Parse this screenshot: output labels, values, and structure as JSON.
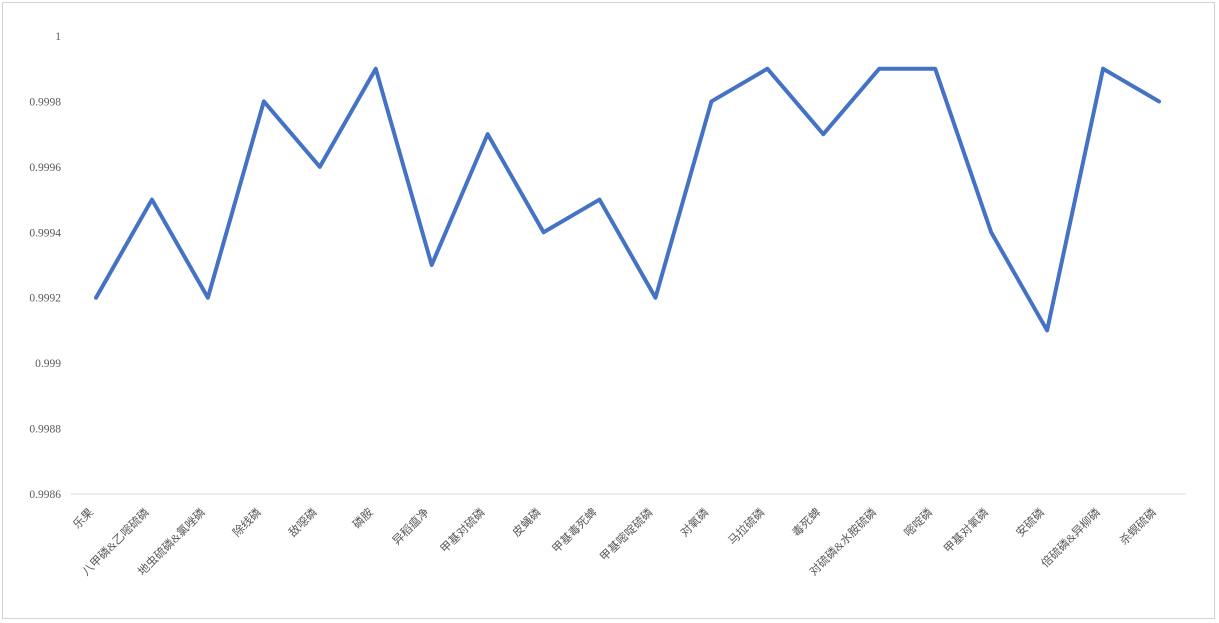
{
  "chart_data": {
    "type": "line",
    "title": "",
    "xlabel": "",
    "ylabel": "",
    "categories": [
      "乐果",
      "八甲磷&乙嘧硫磷",
      "地虫硫磷&氯唑磷",
      "除线磷",
      "敌噁磷",
      "磷胺",
      "异稻瘟净",
      "甲基对硫磷",
      "皮蝇磷",
      "甲基毒死蜱",
      "甲基嘧啶硫磷",
      "对氧磷",
      "马拉硫磷",
      "毒死蜱",
      "对硫磷&水胺硫磷",
      "嘧啶磷",
      "甲基对氧磷",
      "安硫磷",
      "倍硫磷&异柳磷",
      "杀螟硫磷"
    ],
    "values": [
      0.9992,
      0.9995,
      0.9992,
      0.9998,
      0.9996,
      0.9999,
      0.9993,
      0.9997,
      0.9994,
      0.9995,
      0.9992,
      0.9998,
      0.9999,
      0.9997,
      0.9999,
      0.9999,
      0.9994,
      0.9991,
      0.9999,
      0.9998
    ],
    "ylim": [
      0.9986,
      1
    ],
    "y_tick_values": [
      1,
      0.9998,
      0.9996,
      0.9994,
      0.9992,
      0.999,
      0.9988,
      0.9986
    ],
    "y_tick_labels": [
      "1",
      "0.9998",
      "0.9996",
      "0.9994",
      "0.9992",
      "0.999",
      "0.9988",
      "0.9986"
    ],
    "grid": false,
    "legend": "none",
    "x_label_rotation_deg": 45,
    "colors": {
      "line": "#4472C4",
      "axis_line": "#D9D9D9",
      "label_text": "#595959",
      "frame_border": "#D3D3D3",
      "background": "#FFFFFF"
    }
  }
}
